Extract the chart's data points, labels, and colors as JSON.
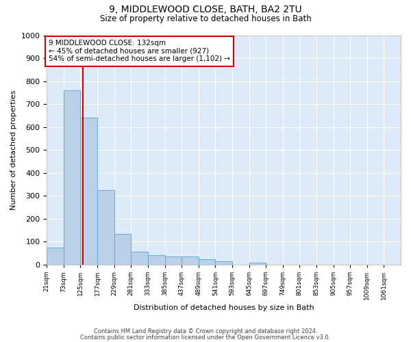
{
  "title": "9, MIDDLEWOOD CLOSE, BATH, BA2 2TU",
  "subtitle": "Size of property relative to detached houses in Bath",
  "xlabel": "Distribution of detached houses by size in Bath",
  "ylabel": "Number of detached properties",
  "bin_labels": [
    "21sqm",
    "73sqm",
    "125sqm",
    "177sqm",
    "229sqm",
    "281sqm",
    "333sqm",
    "385sqm",
    "437sqm",
    "489sqm",
    "541sqm",
    "593sqm",
    "645sqm",
    "697sqm",
    "749sqm",
    "801sqm",
    "853sqm",
    "905sqm",
    "957sqm",
    "1009sqm",
    "1061sqm"
  ],
  "bar_values": [
    75,
    760,
    640,
    325,
    135,
    55,
    40,
    35,
    35,
    25,
    15,
    0,
    10,
    0,
    0,
    0,
    0,
    0,
    0,
    0,
    0
  ],
  "bar_color": "#b8d0e8",
  "bar_edge_color": "#6aaad4",
  "background_color": "#ddeaf7",
  "grid_color": "#ffffff",
  "vline_color": "#cc0000",
  "vline_pos": 2.13,
  "annotation_text": "9 MIDDLEWOOD CLOSE: 132sqm\n← 45% of detached houses are smaller (927)\n54% of semi-detached houses are larger (1,102) →",
  "annotation_box_facecolor": "#ffffff",
  "annotation_box_edgecolor": "#cc0000",
  "ylim": [
    0,
    1000
  ],
  "yticks": [
    0,
    100,
    200,
    300,
    400,
    500,
    600,
    700,
    800,
    900,
    1000
  ],
  "fig_background": "#ffffff",
  "footer_line1": "Contains HM Land Registry data © Crown copyright and database right 2024.",
  "footer_line2": "Contains public sector information licensed under the Open Government Licence v3.0."
}
